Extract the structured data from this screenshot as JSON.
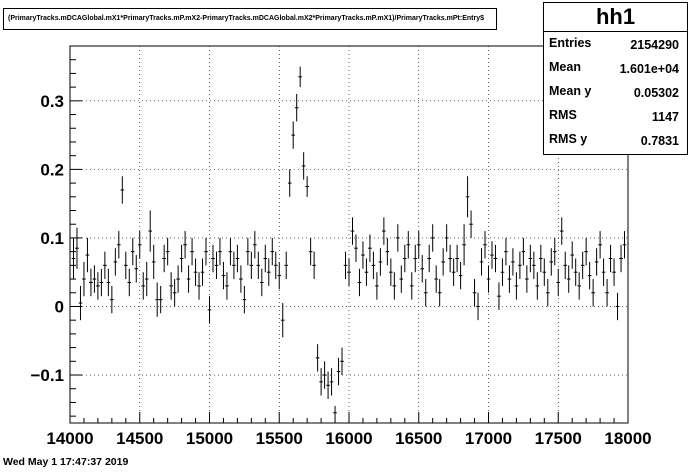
{
  "title": "(PrimaryTracks.mDCAGlobal.mX1*PrimaryTracks.mP.mX2-PrimaryTracks.mDCAGlobal.mX2*PrimaryTracks.mP.mX1)/PrimaryTracks.mPt:Entry$",
  "stats": {
    "name": "hh1",
    "rows": [
      {
        "label": "Entries",
        "value": "2154290"
      },
      {
        "label": "Mean",
        "value": "1.601e+04"
      },
      {
        "label": "Mean y",
        "value": "0.05302"
      },
      {
        "label": "RMS",
        "value": "1147"
      },
      {
        "label": "RMS y",
        "value": "0.7831"
      }
    ]
  },
  "timestamp": "Wed May  1 17:47:37 2019",
  "chart_data": {
    "type": "scatter",
    "style": "profile points with vertical error bars",
    "xlim": [
      14000,
      18000
    ],
    "ylim": [
      -0.17,
      0.38
    ],
    "x_ticks": [
      "14000",
      "14500",
      "15000",
      "15500",
      "16000",
      "16500",
      "17000",
      "17500",
      "18000"
    ],
    "y_ticks": [
      "−0.1",
      "0",
      "0.1",
      "0.2",
      "0.3"
    ],
    "grid": true,
    "color": "#000000",
    "points": [
      [
        14025,
        0.07,
        0.03
      ],
      [
        14050,
        0.085,
        0.03
      ],
      [
        14075,
        0.005,
        0.025
      ],
      [
        14100,
        0.04,
        0.025
      ],
      [
        14125,
        0.075,
        0.025
      ],
      [
        14150,
        0.035,
        0.02
      ],
      [
        14175,
        0.04,
        0.02
      ],
      [
        14200,
        0.03,
        0.02
      ],
      [
        14225,
        0.035,
        0.02
      ],
      [
        14250,
        0.06,
        0.02
      ],
      [
        14275,
        0.035,
        0.02
      ],
      [
        14300,
        0.01,
        0.02
      ],
      [
        14325,
        0.065,
        0.02
      ],
      [
        14350,
        0.09,
        0.02
      ],
      [
        14375,
        0.17,
        0.02
      ],
      [
        14400,
        0.06,
        0.02
      ],
      [
        14425,
        0.035,
        0.02
      ],
      [
        14450,
        0.08,
        0.02
      ],
      [
        14475,
        0.055,
        0.02
      ],
      [
        14500,
        0.09,
        0.02
      ],
      [
        14525,
        0.03,
        0.02
      ],
      [
        14550,
        0.04,
        0.025
      ],
      [
        14575,
        0.11,
        0.03
      ],
      [
        14600,
        0.065,
        0.025
      ],
      [
        14625,
        0.01,
        0.025
      ],
      [
        14650,
        0.01,
        0.02
      ],
      [
        14675,
        0.07,
        0.02
      ],
      [
        14700,
        0.08,
        0.02
      ],
      [
        14725,
        0.03,
        0.02
      ],
      [
        14750,
        0.02,
        0.02
      ],
      [
        14775,
        0.04,
        0.02
      ],
      [
        14800,
        0.07,
        0.02
      ],
      [
        14825,
        0.09,
        0.02
      ],
      [
        14850,
        0.04,
        0.02
      ],
      [
        14875,
        0.08,
        0.02
      ],
      [
        14900,
        0.05,
        0.02
      ],
      [
        14925,
        0.03,
        0.02
      ],
      [
        14950,
        0.05,
        0.02
      ],
      [
        14975,
        0.08,
        0.02
      ],
      [
        15000,
        -0.005,
        0.02
      ],
      [
        15025,
        0.07,
        0.02
      ],
      [
        15050,
        0.06,
        0.02
      ],
      [
        15075,
        0.08,
        0.02
      ],
      [
        15100,
        0.045,
        0.02
      ],
      [
        15125,
        0.03,
        0.02
      ],
      [
        15150,
        0.08,
        0.02
      ],
      [
        15175,
        0.06,
        0.02
      ],
      [
        15200,
        0.07,
        0.02
      ],
      [
        15225,
        0.04,
        0.02
      ],
      [
        15250,
        0.01,
        0.02
      ],
      [
        15275,
        0.08,
        0.02
      ],
      [
        15300,
        0.06,
        0.02
      ],
      [
        15325,
        0.09,
        0.02
      ],
      [
        15350,
        0.06,
        0.02
      ],
      [
        15375,
        0.035,
        0.02
      ],
      [
        15400,
        0.07,
        0.02
      ],
      [
        15425,
        0.05,
        0.02
      ],
      [
        15450,
        0.08,
        0.02
      ],
      [
        15475,
        0.06,
        0.02
      ],
      [
        15500,
        0.045,
        0.02
      ],
      [
        15525,
        -0.02,
        0.025
      ],
      [
        15550,
        0.06,
        0.02
      ],
      [
        15575,
        0.18,
        0.02
      ],
      [
        15600,
        0.25,
        0.02
      ],
      [
        15625,
        0.29,
        0.02
      ],
      [
        15650,
        0.335,
        0.015
      ],
      [
        15675,
        0.205,
        0.02
      ],
      [
        15700,
        0.175,
        0.015
      ],
      [
        15725,
        0.08,
        0.02
      ],
      [
        15750,
        0.06,
        0.02
      ],
      [
        15775,
        -0.075,
        0.02
      ],
      [
        15800,
        -0.11,
        0.02
      ],
      [
        15825,
        -0.1,
        0.02
      ],
      [
        15850,
        -0.115,
        0.02
      ],
      [
        15875,
        -0.11,
        0.02
      ],
      [
        15900,
        -0.155,
        0.01
      ],
      [
        15925,
        -0.095,
        0.02
      ],
      [
        15950,
        -0.08,
        0.02
      ],
      [
        15975,
        0.06,
        0.02
      ],
      [
        16000,
        0.05,
        0.02
      ],
      [
        16025,
        0.11,
        0.02
      ],
      [
        16050,
        0.085,
        0.02
      ],
      [
        16075,
        0.035,
        0.02
      ],
      [
        16100,
        0.075,
        0.02
      ],
      [
        16125,
        0.05,
        0.02
      ],
      [
        16150,
        0.085,
        0.02
      ],
      [
        16175,
        0.06,
        0.02
      ],
      [
        16200,
        0.03,
        0.02
      ],
      [
        16225,
        0.065,
        0.02
      ],
      [
        16250,
        0.11,
        0.02
      ],
      [
        16275,
        0.08,
        0.02
      ],
      [
        16300,
        0.05,
        0.02
      ],
      [
        16325,
        0.03,
        0.02
      ],
      [
        16350,
        0.1,
        0.02
      ],
      [
        16375,
        0.04,
        0.02
      ],
      [
        16400,
        0.07,
        0.02
      ],
      [
        16425,
        0.09,
        0.02
      ],
      [
        16450,
        0.03,
        0.02
      ],
      [
        16475,
        0.07,
        0.02
      ],
      [
        16500,
        0.09,
        0.02
      ],
      [
        16525,
        0.055,
        0.02
      ],
      [
        16550,
        0.02,
        0.02
      ],
      [
        16575,
        0.07,
        0.02
      ],
      [
        16600,
        0.1,
        0.02
      ],
      [
        16625,
        0.04,
        0.02
      ],
      [
        16650,
        0.02,
        0.02
      ],
      [
        16675,
        0.065,
        0.02
      ],
      [
        16700,
        0.1,
        0.02
      ],
      [
        16725,
        0.07,
        0.02
      ],
      [
        16750,
        0.05,
        0.02
      ],
      [
        16775,
        0.07,
        0.02
      ],
      [
        16800,
        0.045,
        0.02
      ],
      [
        16825,
        0.09,
        0.03
      ],
      [
        16850,
        0.16,
        0.03
      ],
      [
        16875,
        0.12,
        0.02
      ],
      [
        16900,
        0.02,
        0.02
      ],
      [
        16925,
        0.0,
        0.02
      ],
      [
        16950,
        0.065,
        0.02
      ],
      [
        16975,
        0.09,
        0.02
      ],
      [
        17000,
        0.04,
        0.02
      ],
      [
        17025,
        0.075,
        0.02
      ],
      [
        17050,
        0.07,
        0.02
      ],
      [
        17075,
        0.015,
        0.02
      ],
      [
        17100,
        0.05,
        0.02
      ],
      [
        17125,
        0.08,
        0.02
      ],
      [
        17150,
        0.04,
        0.02
      ],
      [
        17175,
        0.065,
        0.02
      ],
      [
        17200,
        0.03,
        0.02
      ],
      [
        17225,
        0.06,
        0.02
      ],
      [
        17250,
        0.08,
        0.02
      ],
      [
        17275,
        0.04,
        0.02
      ],
      [
        17300,
        0.07,
        0.02
      ],
      [
        17325,
        0.06,
        0.02
      ],
      [
        17350,
        0.03,
        0.02
      ],
      [
        17375,
        0.07,
        0.02
      ],
      [
        17400,
        0.05,
        0.02
      ],
      [
        17425,
        0.02,
        0.02
      ],
      [
        17450,
        0.065,
        0.02
      ],
      [
        17475,
        0.08,
        0.02
      ],
      [
        17500,
        0.035,
        0.02
      ],
      [
        17525,
        0.11,
        0.02
      ],
      [
        17550,
        0.06,
        0.02
      ],
      [
        17575,
        0.04,
        0.02
      ],
      [
        17600,
        0.075,
        0.02
      ],
      [
        17625,
        0.05,
        0.02
      ],
      [
        17650,
        0.03,
        0.02
      ],
      [
        17675,
        0.06,
        0.02
      ],
      [
        17700,
        0.08,
        0.02
      ],
      [
        17725,
        0.045,
        0.02
      ],
      [
        17750,
        0.02,
        0.02
      ],
      [
        17775,
        0.065,
        0.02
      ],
      [
        17800,
        0.09,
        0.02
      ],
      [
        17825,
        0.05,
        0.02
      ],
      [
        17850,
        0.02,
        0.02
      ],
      [
        17875,
        0.07,
        0.02
      ],
      [
        17900,
        0.05,
        0.02
      ],
      [
        17925,
        0.0,
        0.02
      ],
      [
        17950,
        0.07,
        0.02
      ],
      [
        17975,
        0.09,
        0.02
      ]
    ]
  }
}
